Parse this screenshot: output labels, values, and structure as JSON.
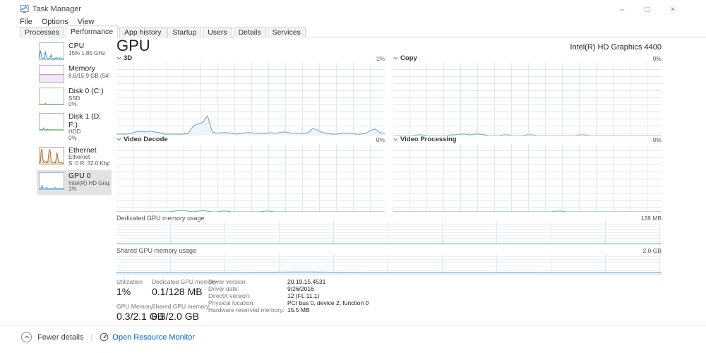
{
  "window": {
    "title": "Task Manager",
    "controls": {
      "minimize": "–",
      "maximize": "□",
      "close": "×"
    }
  },
  "menu": {
    "items": [
      "File",
      "Options",
      "View"
    ]
  },
  "tabs": {
    "items": [
      "Processes",
      "Performance",
      "App history",
      "Startup",
      "Users",
      "Details",
      "Services"
    ],
    "active": "Performance"
  },
  "colors": {
    "link": "#0066cc",
    "chart_border": "#7da3c4",
    "accent_blue": "#71a0c2"
  },
  "sidebar": {
    "items": [
      {
        "name": "CPU",
        "sub1": "15% 1.85 GHz",
        "sub2": "",
        "border": "#9cc0de"
      },
      {
        "name": "Memory",
        "sub1": "8.6/15.9 GB (54%)",
        "sub2": "",
        "border": "#c9a8c9"
      },
      {
        "name": "Disk 0 (C:)",
        "sub1": "SSD",
        "sub2": "0%",
        "border": "#9cc49c"
      },
      {
        "name": "Disk 1 (D: F:)",
        "sub1": "HDD",
        "sub2": "0%",
        "border": "#9cc49c"
      },
      {
        "name": "Ethernet",
        "sub1": "Ethernet",
        "sub2": "S: 0 R: 32.0 Kbps",
        "border": "#c4a284"
      },
      {
        "name": "GPU 0",
        "sub1": "Intel(R) HD Graphi...",
        "sub2": "1%",
        "border": "#9cc0de"
      }
    ]
  },
  "main": {
    "title": "GPU",
    "gpu_name": "Intel(R) HD Graphics 4400",
    "charts": [
      {
        "label": "3D",
        "value": "1%"
      },
      {
        "label": "Copy",
        "value": "0%"
      },
      {
        "label": "Video Decode",
        "value": "0%"
      },
      {
        "label": "Video Processing",
        "value": "0%"
      }
    ],
    "memory_charts": [
      {
        "label": "Dedicated GPU memory usage",
        "max": "128 MB"
      },
      {
        "label": "Shared GPU memory usage",
        "max": "2.0 GB"
      }
    ],
    "stats": {
      "utilization_label": "Utilization",
      "utilization_value": "1%",
      "gpu_memory_label": "GPU Memory",
      "gpu_memory_value": "0.3/2.1 GB",
      "dedicated_label": "Dedicated GPU memory",
      "dedicated_value": "0.1/128 MB",
      "shared_label": "Shared GPU memory",
      "shared_value": "0.3/2.0 GB",
      "details": [
        {
          "label": "Driver version:",
          "value": "20.19.15.4531"
        },
        {
          "label": "Driver date:",
          "value": "9/26/2016"
        },
        {
          "label": "DirectX version:",
          "value": "12 (FL 11.1)"
        },
        {
          "label": "Physical location:",
          "value": "PCI bus 0, device 2, function 0"
        },
        {
          "label": "Hardware reserved memory:",
          "value": "15.5 MB"
        }
      ]
    }
  },
  "footer": {
    "fewer_details": "Fewer details",
    "open_resource_monitor": "Open Resource Monitor"
  },
  "chart_data": {
    "type": "line",
    "sparks": {
      "d3": {
        "stroke": "#71a0c2",
        "fill": "#eef5fa",
        "points": [
          2,
          2,
          2,
          3,
          5,
          6,
          5,
          6,
          5,
          4,
          2,
          2,
          2,
          2,
          2,
          3,
          13,
          16,
          18,
          27,
          5,
          3,
          4,
          4,
          3,
          2,
          3,
          4,
          4,
          3,
          3,
          3,
          4,
          3,
          4,
          5,
          4,
          3,
          3,
          3,
          4,
          10,
          7,
          4,
          3,
          2,
          2,
          3,
          3,
          3,
          2,
          2,
          3,
          7,
          9,
          4,
          3
        ]
      },
      "copy": {
        "stroke": "#71a0c2",
        "fill": "#eef5fa",
        "points": [
          0,
          0,
          0,
          0,
          0,
          1,
          1,
          0,
          0,
          0,
          0,
          0,
          1,
          1,
          2,
          2,
          1,
          2,
          2,
          1,
          0,
          0,
          0,
          1,
          1,
          0,
          0,
          0,
          1,
          1,
          0,
          0,
          0,
          0,
          0,
          0,
          0,
          0,
          0,
          1,
          1,
          0,
          0,
          0,
          0,
          0,
          0,
          0,
          0,
          0,
          0,
          0,
          0,
          0,
          0,
          0,
          0
        ]
      },
      "video_decode": {
        "stroke": "#71a0c2",
        "fill": "#eef5fa",
        "points": [
          0,
          0,
          0,
          0,
          0,
          0,
          0,
          0,
          0,
          0,
          0,
          0,
          1,
          2,
          2,
          1,
          0,
          1,
          2,
          1,
          0,
          0,
          1,
          1,
          0,
          0,
          0,
          0,
          0,
          0,
          0,
          1,
          1,
          0,
          0,
          0,
          0,
          0,
          0,
          0,
          0,
          0,
          0,
          0,
          0,
          0,
          0,
          0,
          0,
          0,
          0,
          0,
          0,
          0,
          0,
          0,
          0
        ]
      },
      "video_processing": {
        "stroke": "#71a0c2",
        "fill": "#eef5fa",
        "points": [
          0,
          0,
          0,
          0,
          0,
          0,
          0,
          0,
          0,
          0,
          0,
          0,
          0,
          0,
          0,
          0,
          0,
          0,
          0,
          0,
          0,
          0,
          0,
          0,
          0,
          0,
          0,
          0,
          0,
          0,
          0,
          0,
          0,
          0,
          1,
          1,
          0,
          0,
          0,
          0,
          0,
          0,
          0,
          0,
          0,
          0,
          0,
          0,
          0,
          0,
          0,
          0,
          0,
          0,
          0,
          0,
          0
        ]
      },
      "dedicated_memory": {
        "stroke": "#71a0c2",
        "fill": "#e9f1f8",
        "points": [
          2,
          2,
          2,
          2,
          2,
          2,
          2,
          2,
          2,
          2,
          2,
          2,
          2,
          2,
          2,
          2,
          2,
          2,
          2,
          2,
          2,
          2,
          2,
          2,
          2,
          2,
          2,
          2,
          2
        ]
      },
      "shared_memory": {
        "stroke": "#71a0c2",
        "fill": "#e9f1f8",
        "points": [
          13,
          13,
          13,
          13,
          13,
          13,
          13,
          14,
          15,
          16,
          16,
          15,
          14,
          13,
          13,
          13,
          13,
          13,
          13,
          13,
          14,
          14,
          13,
          13,
          13,
          13,
          13,
          13,
          13
        ]
      },
      "thumb_cpu": {
        "stroke": "#4a90c4",
        "fill": "#e8f2fa",
        "points": [
          8,
          55,
          35,
          10,
          5,
          8,
          6,
          50,
          20,
          8,
          5,
          4,
          6,
          8,
          30,
          10,
          5,
          4,
          3,
          5,
          12,
          8,
          5,
          4,
          6,
          10,
          5,
          4,
          3,
          3
        ]
      },
      "thumb_memory": {
        "stroke": "#b38cb4",
        "fill": "#f3e8f3",
        "points": [
          45,
          45,
          45,
          45,
          45,
          45,
          45,
          45,
          45,
          45,
          45,
          45,
          45,
          45,
          45,
          45,
          45,
          45,
          45,
          45,
          45,
          45,
          45,
          45,
          45,
          45,
          45,
          45,
          45,
          45
        ]
      },
      "thumb_disk0": {
        "stroke": "#5f9b5f",
        "fill": "#eaf4ea",
        "points": [
          0,
          1,
          0,
          2,
          1,
          0,
          1,
          8,
          2,
          0,
          1,
          0,
          1,
          2,
          1,
          0,
          0,
          1,
          0,
          1,
          0,
          0,
          1,
          0,
          1,
          0,
          0,
          1,
          0,
          0
        ]
      },
      "thumb_disk1": {
        "stroke": "#5f9b5f",
        "fill": "#eaf4ea",
        "points": [
          0,
          1,
          2,
          1,
          0,
          12,
          3,
          1,
          0,
          1,
          2,
          1,
          0,
          1,
          0,
          1,
          0,
          0,
          1,
          0,
          1,
          0,
          0,
          1,
          0,
          1,
          0,
          0,
          0,
          0
        ]
      },
      "thumb_ethernet": {
        "stroke": "#a9703a",
        "fill": "#f0dfc8",
        "points": [
          5,
          10,
          85,
          90,
          30,
          10,
          8,
          15,
          10,
          5,
          8,
          60,
          88,
          75,
          20,
          8,
          5,
          10,
          8,
          5,
          30,
          70,
          40,
          10,
          5,
          8,
          10,
          5,
          3,
          5
        ]
      },
      "thumb_gpu": {
        "stroke": "#4a90c4",
        "fill": "#e8f2fa",
        "points": [
          3,
          4,
          3,
          25,
          6,
          3,
          2,
          3,
          4,
          12,
          4,
          3,
          2,
          3,
          3,
          8,
          3,
          2,
          3,
          10,
          4,
          3,
          2,
          5,
          3,
          2,
          4,
          3,
          6,
          3
        ]
      }
    }
  }
}
